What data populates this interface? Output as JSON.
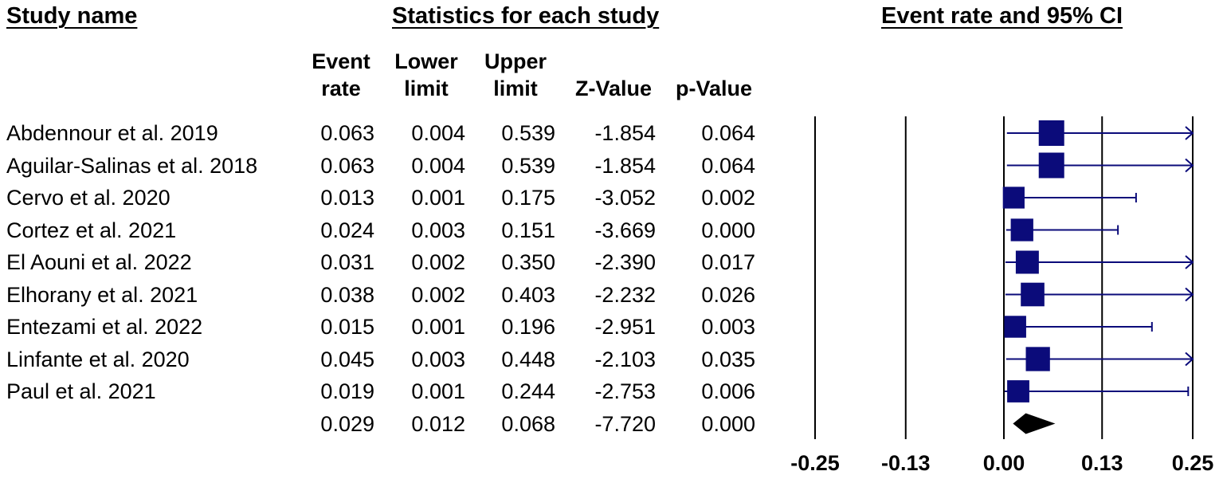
{
  "headers": {
    "study_name": "Study name",
    "statistics": "Statistics for each study",
    "plot_title": "Event rate and 95% CI"
  },
  "columns": {
    "event_rate": [
      "Event",
      "rate"
    ],
    "lower_limit": [
      "Lower",
      "limit"
    ],
    "upper_limit": [
      "Upper",
      "limit"
    ],
    "z_value": "Z-Value",
    "p_value": "p-Value"
  },
  "rows": [
    {
      "name": "Abdennour et al. 2019",
      "er": "0.063",
      "ll": "0.004",
      "ul": "0.539",
      "z": "-1.854",
      "p": "0.064"
    },
    {
      "name": "Aguilar-Salinas et al. 2018",
      "er": "0.063",
      "ll": "0.004",
      "ul": "0.539",
      "z": "-1.854",
      "p": "0.064"
    },
    {
      "name": "Cervo et al. 2020",
      "er": "0.013",
      "ll": "0.001",
      "ul": "0.175",
      "z": "-3.052",
      "p": "0.002"
    },
    {
      "name": "Cortez et al. 2021",
      "er": "0.024",
      "ll": "0.003",
      "ul": "0.151",
      "z": "-3.669",
      "p": "0.000"
    },
    {
      "name": "El Aouni et al. 2022",
      "er": "0.031",
      "ll": "0.002",
      "ul": "0.350",
      "z": "-2.390",
      "p": "0.017"
    },
    {
      "name": "Elhorany et al. 2021",
      "er": "0.038",
      "ll": "0.002",
      "ul": "0.403",
      "z": "-2.232",
      "p": "0.026"
    },
    {
      "name": "Entezami et al. 2022",
      "er": "0.015",
      "ll": "0.001",
      "ul": "0.196",
      "z": "-2.951",
      "p": "0.003"
    },
    {
      "name": "Linfante et al. 2020",
      "er": "0.045",
      "ll": "0.003",
      "ul": "0.448",
      "z": "-2.103",
      "p": "0.035"
    },
    {
      "name": "Paul et al. 2021",
      "er": "0.019",
      "ll": "0.001",
      "ul": "0.244",
      "z": "-2.753",
      "p": "0.006"
    },
    {
      "name": "",
      "er": "0.029",
      "ll": "0.012",
      "ul": "0.068",
      "z": "-7.720",
      "p": "0.000"
    }
  ],
  "chart_data": {
    "type": "forest",
    "title": "Event rate and 95% CI",
    "xlim": [
      -0.25,
      0.25
    ],
    "x_ticks": [
      -0.25,
      -0.13,
      0.0,
      0.13,
      0.25
    ],
    "x_tick_labels": [
      "-0.25",
      "-0.13",
      "0.00",
      "0.13",
      "0.25"
    ],
    "studies": [
      {
        "name": "Abdennour et al. 2019",
        "estimate": 0.063,
        "lower": 0.004,
        "upper": 0.539
      },
      {
        "name": "Aguilar-Salinas et al. 2018",
        "estimate": 0.063,
        "lower": 0.004,
        "upper": 0.539
      },
      {
        "name": "Cervo et al. 2020",
        "estimate": 0.013,
        "lower": 0.001,
        "upper": 0.175
      },
      {
        "name": "Cortez et al. 2021",
        "estimate": 0.024,
        "lower": 0.003,
        "upper": 0.151
      },
      {
        "name": "El Aouni et al. 2022",
        "estimate": 0.031,
        "lower": 0.002,
        "upper": 0.35
      },
      {
        "name": "Elhorany et al. 2021",
        "estimate": 0.038,
        "lower": 0.002,
        "upper": 0.403
      },
      {
        "name": "Entezami et al. 2022",
        "estimate": 0.015,
        "lower": 0.001,
        "upper": 0.196
      },
      {
        "name": "Linfante et al. 2020",
        "estimate": 0.045,
        "lower": 0.003,
        "upper": 0.448
      },
      {
        "name": "Paul et al. 2021",
        "estimate": 0.019,
        "lower": 0.001,
        "upper": 0.244
      }
    ],
    "pooled": {
      "estimate": 0.029,
      "lower": 0.012,
      "upper": 0.068
    },
    "colors": {
      "marker": "#0b0b7a",
      "pooled": "#000000",
      "axis": "#000000"
    }
  }
}
